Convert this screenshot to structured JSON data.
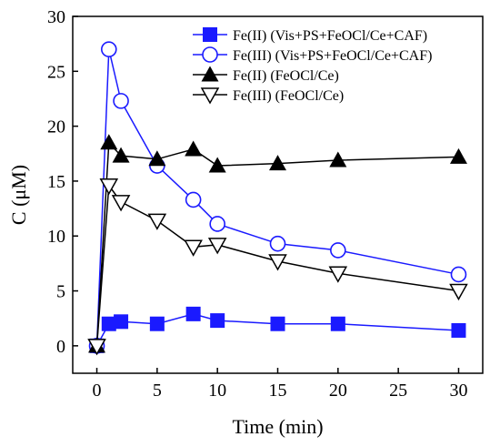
{
  "chart_data": {
    "type": "line",
    "xlabel": "Time (min)",
    "ylabel": "C (μM)",
    "xlim": [
      -2,
      32
    ],
    "ylim": [
      -2.5,
      30
    ],
    "xticks": [
      0,
      5,
      10,
      15,
      20,
      25,
      30
    ],
    "yticks": [
      0,
      5,
      10,
      15,
      20,
      25,
      30
    ],
    "grid": false,
    "legend_position": "top-right",
    "series": [
      {
        "name": "Fe(II) (Vis+PS+FeOCl/Ce+CAF)",
        "color": "#1a1aff",
        "marker": "square-filled",
        "x": [
          0,
          1,
          2,
          5,
          8,
          10,
          15,
          20,
          30
        ],
        "y": [
          0,
          2.0,
          2.2,
          2.0,
          2.9,
          2.3,
          2.0,
          2.0,
          1.4
        ]
      },
      {
        "name": "Fe(III) (Vis+PS+FeOCl/Ce+CAF)",
        "color": "#1a1aff",
        "marker": "circle-open",
        "x": [
          0,
          1,
          2,
          5,
          8,
          10,
          15,
          20,
          30
        ],
        "y": [
          0,
          27.0,
          22.3,
          16.4,
          13.3,
          11.1,
          9.3,
          8.7,
          6.5
        ]
      },
      {
        "name": "Fe(II) (FeOCl/Ce)",
        "color": "#000000",
        "marker": "triangle-up-filled",
        "x": [
          0,
          1,
          2,
          5,
          8,
          10,
          15,
          20,
          30
        ],
        "y": [
          0,
          18.5,
          17.3,
          17.0,
          17.9,
          16.4,
          16.6,
          16.9,
          17.2
        ]
      },
      {
        "name": "Fe(III) (FeOCl/Ce)",
        "color": "#000000",
        "marker": "triangle-down-open",
        "x": [
          0,
          1,
          2,
          5,
          8,
          10,
          15,
          20,
          30
        ],
        "y": [
          0,
          14.6,
          13.1,
          11.4,
          9.0,
          9.2,
          7.7,
          6.6,
          5.0
        ]
      }
    ]
  }
}
